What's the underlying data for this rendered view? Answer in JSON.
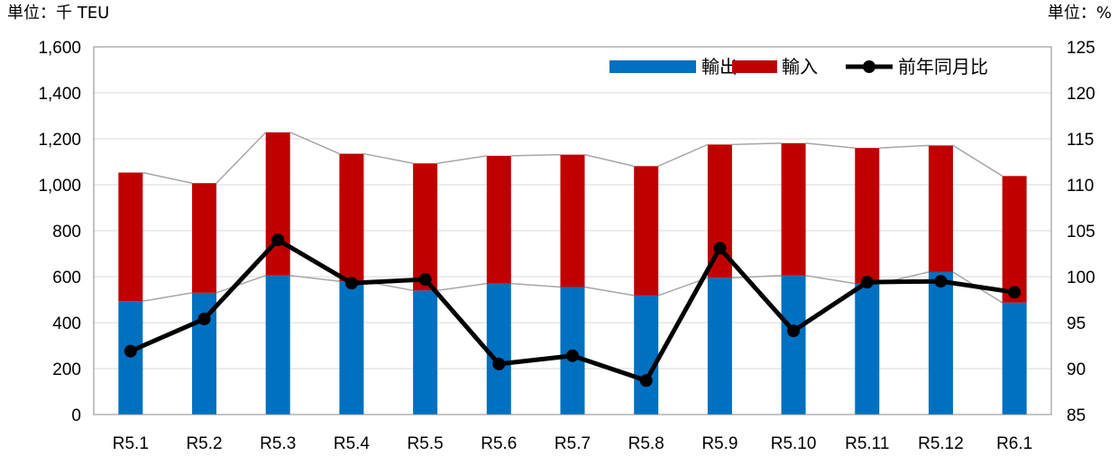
{
  "chart_data": {
    "type": "bar",
    "stacked": true,
    "left_unit_label": "単位：千 TEU",
    "right_unit_label": "単位：%",
    "categories": [
      "R5.1",
      "R5.2",
      "R5.3",
      "R5.4",
      "R5.5",
      "R5.6",
      "R5.7",
      "R5.8",
      "R5.9",
      "R5.10",
      "R5.11",
      "R5.12",
      "R6.1"
    ],
    "series": [
      {
        "name": "輸出",
        "type": "bar",
        "axis": "left",
        "color": "#0070c0",
        "values": [
          493,
          530,
          605,
          580,
          540,
          570,
          555,
          518,
          595,
          605,
          570,
          620,
          487
        ]
      },
      {
        "name": "輸入",
        "type": "bar",
        "axis": "left",
        "color": "#c00000",
        "values": [
          560,
          477,
          623,
          555,
          553,
          556,
          576,
          563,
          580,
          576,
          590,
          551,
          551
        ]
      },
      {
        "name": "前年同月比",
        "type": "line",
        "axis": "right",
        "color": "#000000",
        "values": [
          91.9,
          95.4,
          104.0,
          99.3,
          99.7,
          90.5,
          91.4,
          88.7,
          103.1,
          94.1,
          99.4,
          99.5,
          98.3
        ]
      }
    ],
    "left_axis": {
      "ylim": [
        0,
        1600
      ],
      "ticks": [
        "0",
        "200",
        "400",
        "600",
        "800",
        "1,000",
        "1,200",
        "1,400",
        "1,600"
      ]
    },
    "right_axis": {
      "ylim": [
        85,
        125
      ],
      "ticks": [
        "85",
        "90",
        "95",
        "100",
        "105",
        "110",
        "115",
        "120",
        "125"
      ]
    },
    "grid": true,
    "legend_position": "top-right"
  }
}
